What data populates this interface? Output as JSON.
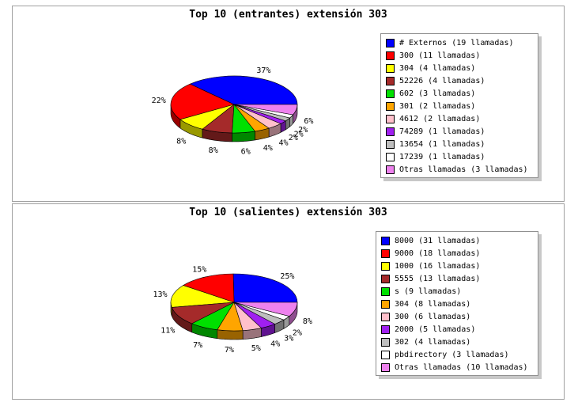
{
  "chart_data": [
    {
      "type": "pie",
      "title": "Top 10 (entrantes) extensión 303",
      "legend_position": "right",
      "slices": [
        {
          "label": "# Externos (19 llamadas)",
          "value": 19,
          "pct": "37%",
          "color": "#0000ff"
        },
        {
          "label": "300 (11 llamadas)",
          "value": 11,
          "pct": "22%",
          "color": "#ff0000"
        },
        {
          "label": "304 (4 llamadas)",
          "value": 4,
          "pct": "8%",
          "color": "#ffff00"
        },
        {
          "label": "52226 (4 llamadas)",
          "value": 4,
          "pct": "8%",
          "color": "#a52a2a"
        },
        {
          "label": "602 (3 llamadas)",
          "value": 3,
          "pct": "6%",
          "color": "#00e000"
        },
        {
          "label": "301 (2 llamadas)",
          "value": 2,
          "pct": "4%",
          "color": "#ffa500"
        },
        {
          "label": "4612 (2 llamadas)",
          "value": 2,
          "pct": "4%",
          "color": "#ffc0cb"
        },
        {
          "label": "74289 (1 llamadas)",
          "value": 1,
          "pct": "2%",
          "color": "#a020f0"
        },
        {
          "label": "13654 (1 llamadas)",
          "value": 1,
          "pct": "2%",
          "color": "#bebebe"
        },
        {
          "label": "17239 (1 llamadas)",
          "value": 1,
          "pct": "2%",
          "color": "#ffffff"
        },
        {
          "label": "Otras llamadas (3 llamadas)",
          "value": 3,
          "pct": "6%",
          "color": "#ee82ee"
        }
      ]
    },
    {
      "type": "pie",
      "title": "Top 10 (salientes) extensión 303",
      "legend_position": "right",
      "slices": [
        {
          "label": "8000 (31 llamadas)",
          "value": 31,
          "pct": "25%",
          "color": "#0000ff"
        },
        {
          "label": "9000 (18 llamadas)",
          "value": 18,
          "pct": "15%",
          "color": "#ff0000"
        },
        {
          "label": "1000 (16 llamadas)",
          "value": 16,
          "pct": "13%",
          "color": "#ffff00"
        },
        {
          "label": "5555 (13 llamadas)",
          "value": 13,
          "pct": "11%",
          "color": "#a52a2a"
        },
        {
          "label": "s (9 llamadas)",
          "value": 9,
          "pct": "7%",
          "color": "#00e000"
        },
        {
          "label": "304 (8 llamadas)",
          "value": 8,
          "pct": "7%",
          "color": "#ffa500"
        },
        {
          "label": "300 (6 llamadas)",
          "value": 6,
          "pct": "5%",
          "color": "#ffc0cb"
        },
        {
          "label": "2000 (5 llamadas)",
          "value": 5,
          "pct": "4%",
          "color": "#a020f0"
        },
        {
          "label": "302 (4 llamadas)",
          "value": 4,
          "pct": "3%",
          "color": "#bebebe"
        },
        {
          "label": "pbdirectory (3 llamadas)",
          "value": 3,
          "pct": "2%",
          "color": "#ffffff"
        },
        {
          "label": "Otras llamadas (10 llamadas)",
          "value": 10,
          "pct": "8%",
          "color": "#ee82ee"
        }
      ]
    }
  ]
}
